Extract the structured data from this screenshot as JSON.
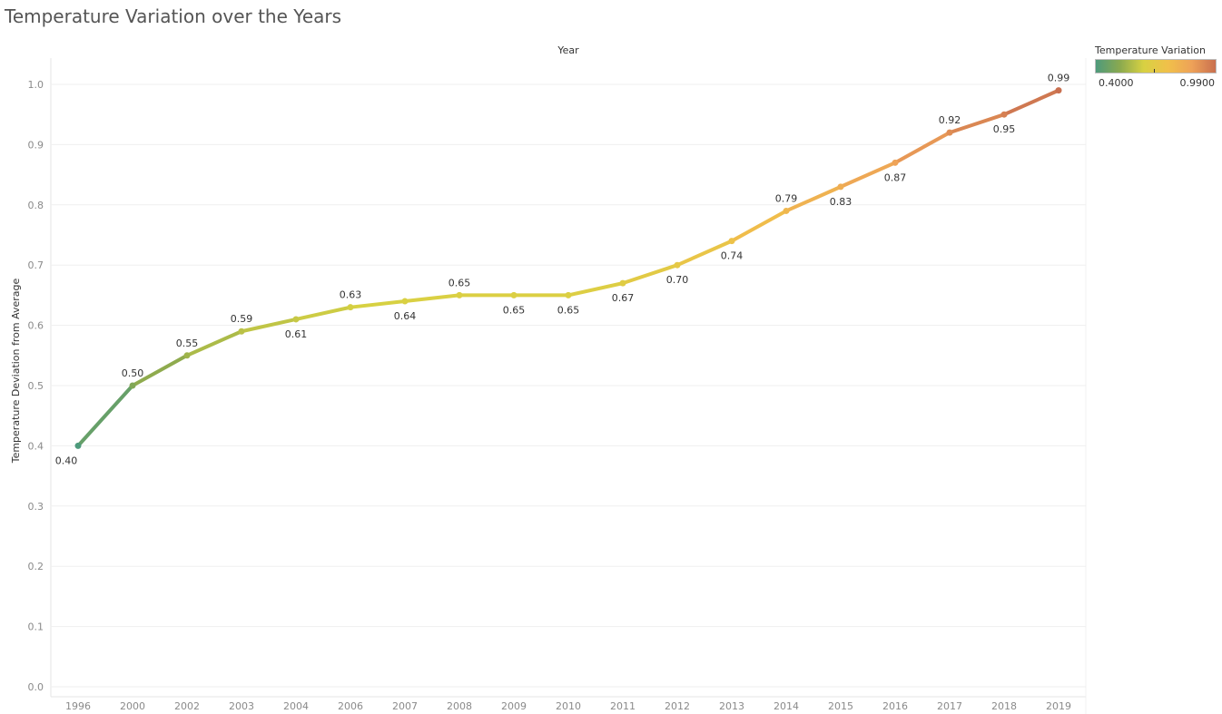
{
  "title": "Temperature Variation over the Years",
  "legend": {
    "title": "Temperature Variation",
    "min_label": "0.4000",
    "max_label": "0.9900",
    "gradient_colors": [
      "#4e9a7c",
      "#8aa94f",
      "#d8d142",
      "#f0c04a",
      "#eea258",
      "#c96f4f"
    ]
  },
  "chart_data": {
    "type": "line",
    "title": "Temperature Variation over the Years",
    "xlabel": "Year",
    "ylabel": "Temperature Deviation from Average",
    "categories": [
      "1996",
      "2000",
      "2002",
      "2003",
      "2004",
      "2006",
      "2007",
      "2008",
      "2009",
      "2010",
      "2011",
      "2012",
      "2013",
      "2014",
      "2015",
      "2016",
      "2017",
      "2018",
      "2019"
    ],
    "values": [
      0.4,
      0.5,
      0.55,
      0.59,
      0.61,
      0.63,
      0.64,
      0.65,
      0.65,
      0.65,
      0.67,
      0.7,
      0.74,
      0.79,
      0.83,
      0.87,
      0.92,
      0.95,
      0.99
    ],
    "data_labels": [
      "0.40",
      "0.50",
      "0.55",
      "0.59",
      "0.61",
      "0.63",
      "0.64",
      "0.65",
      "0.65",
      "0.65",
      "0.67",
      "0.70",
      "0.74",
      "0.79",
      "0.83",
      "0.87",
      "0.92",
      "0.95",
      "0.99"
    ],
    "label_positions": [
      "below",
      "above",
      "above",
      "above",
      "below",
      "above",
      "below",
      "above",
      "below",
      "below",
      "below",
      "below",
      "below",
      "above",
      "below",
      "below",
      "above",
      "below",
      "above"
    ],
    "yticks": [
      "0.0",
      "0.1",
      "0.2",
      "0.3",
      "0.4",
      "0.5",
      "0.6",
      "0.7",
      "0.8",
      "0.9",
      "1.0"
    ],
    "ylim": [
      0,
      1.0
    ],
    "grid": true,
    "legend_position": "top-right",
    "color_scale": {
      "min": 0.4,
      "max": 0.99
    }
  }
}
